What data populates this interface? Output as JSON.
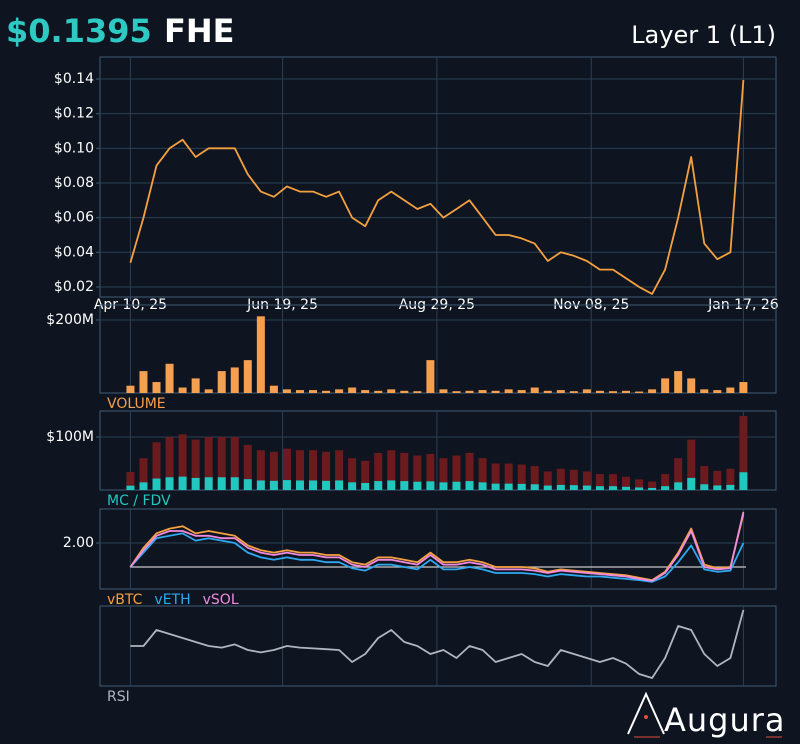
{
  "header": {
    "price": "$0.1395",
    "symbol": "FHE",
    "category": "Layer 1 (L1)"
  },
  "logo": "Augura",
  "chart_data": [
    {
      "type": "line",
      "color": "#f5a040",
      "x": [
        "2025-04-10",
        "2025-04-16",
        "2025-04-22",
        "2025-04-28",
        "2025-05-04",
        "2025-05-10",
        "2025-05-16",
        "2025-05-22",
        "2025-05-28",
        "2025-06-03",
        "2025-06-09",
        "2025-06-15",
        "2025-06-21",
        "2025-06-27",
        "2025-07-03",
        "2025-07-09",
        "2025-07-15",
        "2025-07-21",
        "2025-07-27",
        "2025-08-02",
        "2025-08-08",
        "2025-08-14",
        "2025-08-20",
        "2025-08-26",
        "2025-09-01",
        "2025-09-07",
        "2025-09-13",
        "2025-09-19",
        "2025-09-25",
        "2025-10-01",
        "2025-10-07",
        "2025-10-13",
        "2025-10-19",
        "2025-10-25",
        "2025-10-31",
        "2025-11-06",
        "2025-11-12",
        "2025-11-18",
        "2025-11-24",
        "2025-11-30",
        "2025-12-06",
        "2025-12-12",
        "2025-12-18",
        "2025-12-24",
        "2025-12-30",
        "2026-01-05",
        "2026-01-11",
        "2026-01-17"
      ],
      "values": [
        0.034,
        0.06,
        0.09,
        0.1,
        0.105,
        0.095,
        0.1,
        0.1,
        0.1,
        0.085,
        0.075,
        0.072,
        0.078,
        0.075,
        0.075,
        0.072,
        0.075,
        0.06,
        0.055,
        0.07,
        0.075,
        0.07,
        0.065,
        0.068,
        0.06,
        0.065,
        0.07,
        0.06,
        0.05,
        0.05,
        0.048,
        0.045,
        0.035,
        0.04,
        0.038,
        0.035,
        0.03,
        0.03,
        0.025,
        0.02,
        0.016,
        0.03,
        0.06,
        0.095,
        0.045,
        0.036,
        0.04,
        0.1395
      ],
      "xlim": [
        "2025-03-27",
        "2026-02-01"
      ],
      "xticks": [
        {
          "value": "2025-04-10",
          "label": "Apr 10, 25"
        },
        {
          "value": "2025-06-19",
          "label": "Jun 19, 25"
        },
        {
          "value": "2025-08-29",
          "label": "Aug 29, 25"
        },
        {
          "value": "2025-11-08",
          "label": "Nov 08, 25"
        },
        {
          "value": "2026-01-17",
          "label": "Jan 17, 26"
        }
      ],
      "ylim": [
        0.0142,
        0.1527
      ],
      "yticks": [
        {
          "value": 0.02,
          "label": "$0.02"
        },
        {
          "value": 0.04,
          "label": "$0.04"
        },
        {
          "value": 0.06,
          "label": "$0.06"
        },
        {
          "value": 0.08,
          "label": "$0.08"
        },
        {
          "value": 0.1,
          "label": "$0.10"
        },
        {
          "value": 0.12,
          "label": "$0.12"
        },
        {
          "value": 0.14,
          "label": "$0.14"
        }
      ],
      "grid": true
    },
    {
      "type": "bar",
      "label": "VOLUME",
      "color": "#f5a050",
      "values": [
        20000000,
        60000000,
        30000000,
        80000000,
        15000000,
        40000000,
        10000000,
        60000000,
        70000000,
        90000000,
        210000000,
        20000000,
        10000000,
        8000000,
        8000000,
        6000000,
        10000000,
        15000000,
        8000000,
        6000000,
        10000000,
        6000000,
        5000000,
        90000000,
        10000000,
        5000000,
        6000000,
        8000000,
        6000000,
        10000000,
        8000000,
        15000000,
        6000000,
        8000000,
        5000000,
        10000000,
        6000000,
        5000000,
        6000000,
        4000000,
        10000000,
        40000000,
        60000000,
        40000000,
        10000000,
        8000000,
        15000000,
        30000000
      ],
      "ylim": [
        0,
        241000000
      ],
      "yticks": [
        {
          "value": 200000000,
          "label": "$200M"
        }
      ],
      "grid": true
    },
    {
      "type": "bar",
      "label": "MC / FDV",
      "series": [
        {
          "color": "#6b1a1e",
          "values": [
            34000000,
            60000000,
            90000000,
            100000000,
            105000000,
            95000000,
            100000000,
            100000000,
            100000000,
            85000000,
            75000000,
            72000000,
            78000000,
            75000000,
            75000000,
            72000000,
            75000000,
            60000000,
            55000000,
            70000000,
            75000000,
            70000000,
            65000000,
            68000000,
            60000000,
            65000000,
            70000000,
            60000000,
            50000000,
            50000000,
            48000000,
            45000000,
            35000000,
            40000000,
            38000000,
            35000000,
            30000000,
            30000000,
            25000000,
            20000000,
            16000000,
            30000000,
            60000000,
            95000000,
            45000000,
            36000000,
            40000000,
            139500000
          ]
        },
        {
          "color": "#22c7c0",
          "values": [
            8200000,
            14400000,
            21600000,
            24000000,
            25200000,
            22800000,
            24000000,
            24000000,
            24000000,
            20400000,
            18000000,
            17300000,
            18700000,
            18000000,
            18000000,
            17300000,
            18000000,
            14400000,
            13200000,
            16800000,
            18000000,
            16800000,
            15600000,
            16300000,
            14400000,
            15600000,
            16800000,
            14400000,
            12000000,
            12000000,
            11500000,
            10800000,
            8400000,
            9600000,
            9100000,
            8400000,
            7200000,
            7200000,
            6000000,
            4800000,
            3800000,
            7200000,
            14400000,
            22800000,
            10800000,
            8600000,
            9600000,
            33500000
          ]
        }
      ],
      "ylim": [
        0,
        149000000
      ],
      "yticks": [
        {
          "value": 100000000,
          "label": "$100M"
        }
      ],
      "grid": true
    },
    {
      "type": "line",
      "reference_line": 1,
      "series": [
        {
          "name": "vBTC",
          "color": "#f5a040",
          "values": [
            1.0,
            1.8,
            2.4,
            2.6,
            2.7,
            2.4,
            2.5,
            2.4,
            2.3,
            1.9,
            1.7,
            1.6,
            1.7,
            1.6,
            1.6,
            1.5,
            1.5,
            1.2,
            1.1,
            1.4,
            1.4,
            1.3,
            1.2,
            1.6,
            1.2,
            1.2,
            1.3,
            1.2,
            1.0,
            1.0,
            1.0,
            0.95,
            0.8,
            0.9,
            0.85,
            0.8,
            0.75,
            0.7,
            0.65,
            0.55,
            0.45,
            0.8,
            1.6,
            2.6,
            1.1,
            0.95,
            1.0,
            3.2
          ]
        },
        {
          "name": "vETH",
          "color": "#2fa8f0",
          "values": [
            1.0,
            1.6,
            2.2,
            2.3,
            2.4,
            2.1,
            2.2,
            2.1,
            2.0,
            1.6,
            1.4,
            1.3,
            1.4,
            1.3,
            1.3,
            1.2,
            1.2,
            0.95,
            0.85,
            1.1,
            1.1,
            1.0,
            0.9,
            1.3,
            0.9,
            0.9,
            1.0,
            0.9,
            0.75,
            0.75,
            0.75,
            0.7,
            0.6,
            0.7,
            0.65,
            0.6,
            0.6,
            0.55,
            0.5,
            0.45,
            0.38,
            0.6,
            1.2,
            1.9,
            0.9,
            0.8,
            0.85,
            2.0
          ]
        },
        {
          "name": "vSOL",
          "color": "#f08ce0",
          "values": [
            1.0,
            1.7,
            2.3,
            2.5,
            2.5,
            2.3,
            2.3,
            2.2,
            2.2,
            1.8,
            1.6,
            1.5,
            1.6,
            1.5,
            1.5,
            1.4,
            1.4,
            1.1,
            1.0,
            1.3,
            1.3,
            1.2,
            1.1,
            1.5,
            1.1,
            1.1,
            1.2,
            1.1,
            0.9,
            0.9,
            0.9,
            0.85,
            0.75,
            0.85,
            0.8,
            0.75,
            0.7,
            0.65,
            0.6,
            0.5,
            0.42,
            0.75,
            1.5,
            2.5,
            1.0,
            0.9,
            0.95,
            3.3
          ]
        }
      ],
      "ylim": [
        0.08,
        3.42
      ],
      "yticks": [
        {
          "value": 2,
          "label": "2.00"
        }
      ],
      "grid": true
    },
    {
      "type": "line",
      "label": "RSI",
      "color": "#b0b6c0",
      "values": [
        50,
        50,
        70,
        65,
        60,
        55,
        50,
        48,
        52,
        45,
        42,
        45,
        50,
        48,
        47,
        46,
        45,
        30,
        40,
        60,
        70,
        55,
        50,
        40,
        45,
        35,
        50,
        45,
        30,
        35,
        40,
        30,
        25,
        45,
        40,
        35,
        30,
        35,
        28,
        15,
        10,
        35,
        75,
        70,
        40,
        25,
        35,
        95
      ],
      "ylim": [
        0,
        100
      ],
      "grid": true
    }
  ]
}
